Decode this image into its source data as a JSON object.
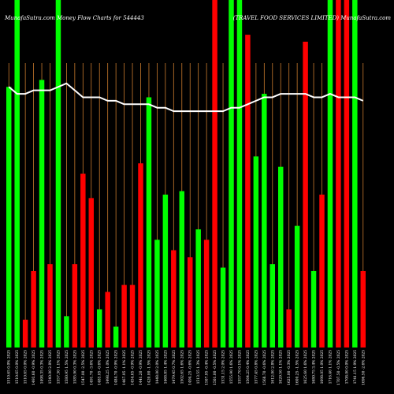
{
  "title_left": "MunafaSutra.com Money Flow  Charts for 544443",
  "title_right": "(TRAVEL FOOD SERVICES LIMITED) MunafaSutra.com",
  "colors": {
    "background": "#000000",
    "up": "#00ff00",
    "down": "#ff0000",
    "gridline": "#c87a2c",
    "line": "#ffffff",
    "text": "#ffffff"
  },
  "chart_data": {
    "type": "bar",
    "grid": true,
    "ylim": [
      0,
      100
    ],
    "categories": [
      "1510.65 0.0% 2025",
      "1510.65 0.0% 2025",
      "1510.65 0.0% 2025",
      "1493.60 -0.9% 2025",
      "1498.35 0.3% 2025",
      "1540.00 2.8% 2025",
      "1557.30 1.1% 2025",
      "1580.95 1.5% 2025",
      "1585.90 0.3% 2025",
      "1547.00 -2.5% 2025",
      "1491.70 -3.6% 2025",
      "1483.05 -0.6% 2025",
      "1498.25 1.0% 2025",
      "1484.70 -0.9% 2025",
      "1467.95 -1.1% 2025",
      "1454.65 -0.9% 2025",
      "1441.20 -0.9% 2025",
      "1420.00 -1.5% 2025",
      "1448.00 2.0% 2025",
      "1468.85 1.4% 2025",
      "1479.45 0.7% 2025",
      "1502.65 1.6% 2025",
      "1494.25 -0.6% 2025",
      "1513.55 1.3% 2025",
      "1507.95 -0.4% 2025",
      "1501.00 -0.5% 2025",
      "1531.15 2.0% 2025",
      "1555.90 1.6% 2025",
      "1557.70 0.1% 2025",
      "1564.25 0.4% 2025",
      "1577.45 0.8% 2025",
      "1568.70 -0.6% 2025",
      "1612.00 2.8% 2025",
      "1629.50 1.1% 2025",
      "1625.00 -0.3% 2025",
      "1600.25 -1.5% 2025",
      "1625.60 1.6% 2025",
      "1680.75 3.4% 2025",
      "1698.05 1.0% 2025",
      "1716.40 1.1% 2025",
      "1707.50 -0.5% 2025",
      "1708.00 0.0% 2025",
      "1741.15 1.9% 2025",
      "1696.50 -2.6% 2025"
    ],
    "bar_colors": [
      "green",
      "green",
      "red",
      "red",
      "green",
      "red",
      "green",
      "green",
      "red",
      "red",
      "red",
      "green",
      "red",
      "green",
      "red",
      "red",
      "red",
      "green",
      "green",
      "green",
      "red",
      "green",
      "red",
      "green",
      "red",
      "red",
      "green",
      "green",
      "green",
      "red",
      "green",
      "green",
      "green",
      "green",
      "red",
      "green",
      "red",
      "green",
      "red",
      "green",
      "red",
      "red",
      "green",
      "red"
    ],
    "values": [
      75,
      100,
      8,
      22,
      77,
      24,
      100,
      9,
      24,
      50,
      43,
      11,
      16,
      6,
      18,
      18,
      53,
      72,
      31,
      44,
      28,
      45,
      26,
      34,
      31,
      100,
      23,
      100,
      100,
      90,
      55,
      73,
      24,
      52,
      11,
      35,
      88,
      22,
      44,
      100,
      100,
      100,
      100,
      22
    ],
    "series": [
      {
        "type": "line",
        "values": [
          75,
          73,
          73,
          74,
          74,
          74,
          75,
          76,
          74,
          72,
          72,
          72,
          71,
          71,
          70,
          70,
          70,
          70,
          69,
          69,
          68,
          68,
          68,
          68,
          68,
          68,
          68,
          69,
          69,
          70,
          71,
          72,
          72,
          73,
          73,
          73,
          73,
          72,
          72,
          73,
          72,
          72,
          72,
          71
        ]
      }
    ]
  }
}
